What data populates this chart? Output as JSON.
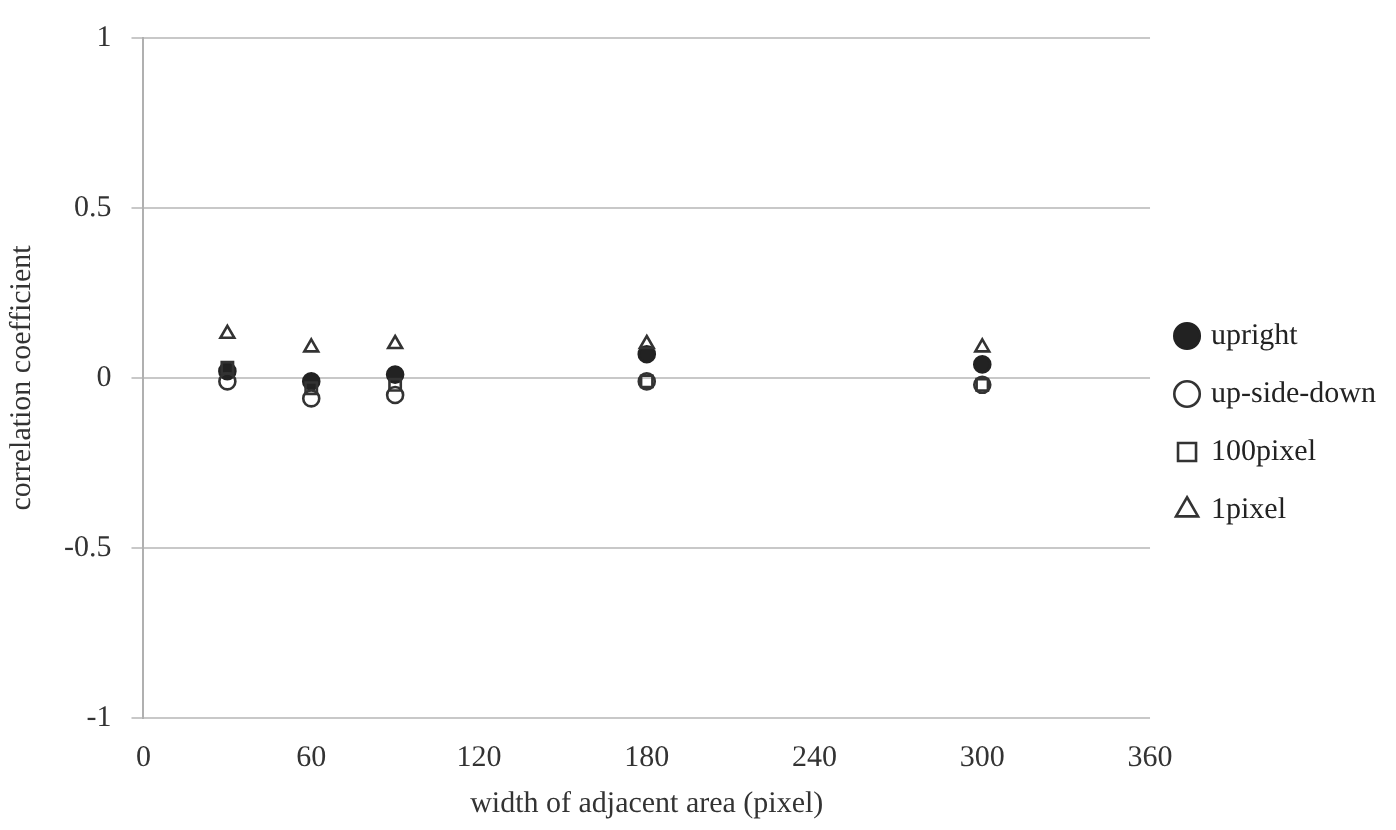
{
  "chart_data": {
    "type": "scatter",
    "xlabel": "width of adjacent area (pixel)",
    "ylabel": "correlation coefficient",
    "x": [
      30,
      60,
      90,
      180,
      300
    ],
    "series": [
      {
        "name": "upright",
        "color": "#222222",
        "marker": "circle",
        "values": [
          0.02,
          -0.01,
          0.01,
          0.07,
          0.04
        ]
      },
      {
        "name": "up-side-down",
        "color": "#333333",
        "marker": "circle",
        "values": [
          -0.01,
          -0.06,
          -0.05,
          -0.01,
          -0.02
        ]
      },
      {
        "name": "100pixel",
        "color": "#333333",
        "marker": "square",
        "values": [
          0.03,
          -0.03,
          -0.02,
          -0.01,
          -0.02
        ]
      },
      {
        "name": "1pixel",
        "color": "#333333",
        "marker": "triangle",
        "values": [
          0.13,
          0.09,
          0.1,
          0.1,
          0.09
        ]
      }
    ],
    "xlim": [
      0,
      360
    ],
    "xticks": [
      0,
      60,
      120,
      180,
      240,
      300,
      360
    ],
    "ylim": [
      -1,
      1
    ],
    "yticks": [
      -1,
      -0.5,
      0,
      0.5,
      1
    ],
    "grid": "y",
    "legend": "right"
  }
}
